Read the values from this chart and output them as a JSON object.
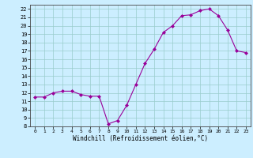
{
  "x": [
    0,
    1,
    2,
    3,
    4,
    5,
    6,
    7,
    8,
    9,
    10,
    11,
    12,
    13,
    14,
    15,
    16,
    17,
    18,
    19,
    20,
    21,
    22,
    23
  ],
  "y": [
    11.5,
    11.5,
    12.0,
    12.2,
    12.2,
    11.8,
    11.6,
    11.6,
    8.3,
    8.7,
    10.5,
    13.0,
    15.5,
    17.2,
    19.2,
    20.0,
    21.2,
    21.3,
    21.8,
    22.0,
    21.2,
    19.5,
    17.0,
    16.8
  ],
  "xlabel": "Windchill (Refroidissement éolien,°C)",
  "line_color": "#990099",
  "marker": "D",
  "marker_size": 2.0,
  "background_color": "#cceeff",
  "grid_color": "#99cccc",
  "xlim": [
    -0.5,
    23.5
  ],
  "ylim": [
    8,
    22.5
  ],
  "xticks": [
    0,
    1,
    2,
    3,
    4,
    5,
    6,
    7,
    8,
    9,
    10,
    11,
    12,
    13,
    14,
    15,
    16,
    17,
    18,
    19,
    20,
    21,
    22,
    23
  ],
  "yticks": [
    8,
    9,
    10,
    11,
    12,
    13,
    14,
    15,
    16,
    17,
    18,
    19,
    20,
    21,
    22
  ]
}
